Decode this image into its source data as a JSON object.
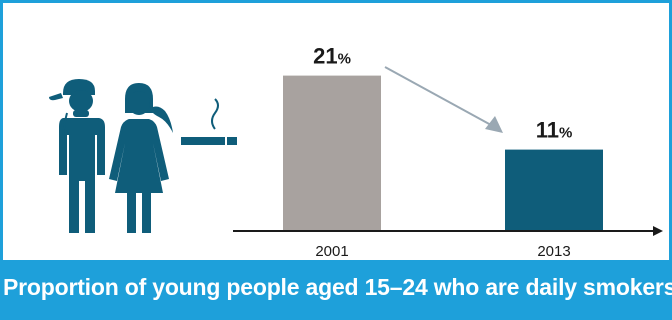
{
  "colors": {
    "border": "#1ea0da",
    "caption_bg": "#1ea0da",
    "caption_text": "#ffffff",
    "icon": "#0f5d7a",
    "bar_2001": "#a8a29f",
    "bar_2013": "#0f5d7a",
    "arrow": "#9aa8b3",
    "axis": "#1a1a1a"
  },
  "caption": "Proportion of young people aged 15–24 who are daily smokers",
  "chart_data": {
    "type": "bar",
    "categories": [
      "2001",
      "2013"
    ],
    "values": [
      21,
      11
    ],
    "unit": "%",
    "title": "Proportion of young people aged 15–24 who are daily smokers",
    "xlabel": "",
    "ylabel": "",
    "ylim": [
      0,
      25
    ],
    "grid": false,
    "legend": "none",
    "annotations": [
      "arrow from 2001 value to 2013 value indicating decrease"
    ]
  },
  "icons": [
    "young-man-icon",
    "young-woman-icon",
    "cigarette-icon"
  ]
}
